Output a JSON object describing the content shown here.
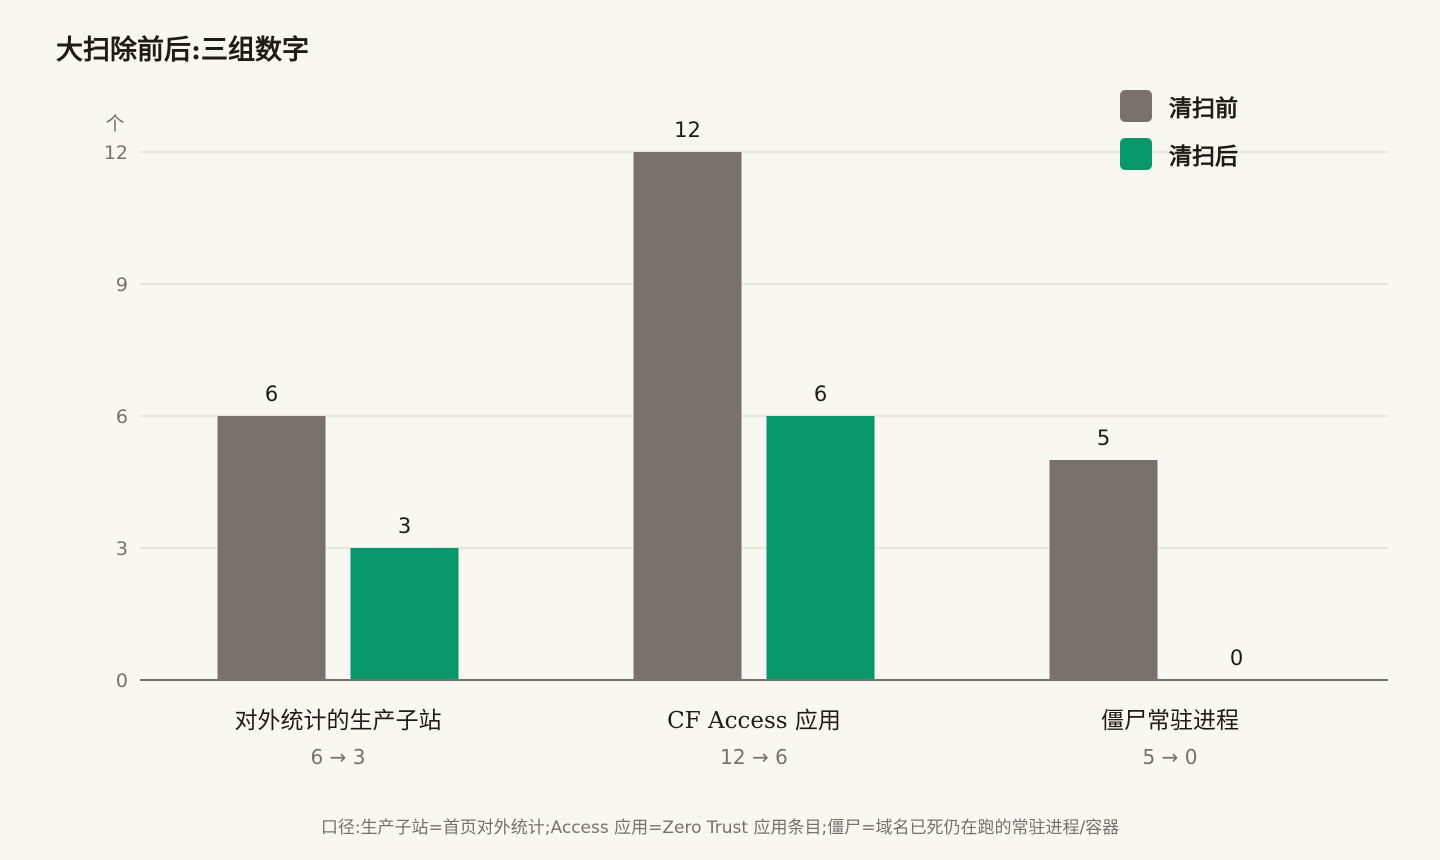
{
  "title": "大扫除前后:三组数字",
  "footnote": "口径:生产子站=首页对外统计;Access 应用=Zero Trust 应用条目;僵尸=域名已死仍在跑的常驻进程/容器",
  "colors": {
    "before": "#79716b",
    "after": "#08966b",
    "grid": "#e6e3d6",
    "axis": "#77716a",
    "tick_text": "#77716a",
    "label_text": "#1f1b18",
    "background": "#f9f7f2"
  },
  "chart_data": {
    "type": "bar",
    "title": "大扫除前后:三组数字",
    "y_unit": "个",
    "ylim": [
      0,
      12
    ],
    "yticks": [
      0,
      3,
      6,
      9,
      12
    ],
    "grid": true,
    "legend_position": "top-right",
    "categories": [
      "对外统计的生产子站",
      "CF Access 应用",
      "僵尸常驻进程"
    ],
    "category_notes": [
      "6 → 3",
      "12 → 6",
      "5 → 0"
    ],
    "series": [
      {
        "name": "清扫前",
        "values": [
          6,
          12,
          5
        ]
      },
      {
        "name": "清扫后",
        "values": [
          3,
          6,
          0
        ]
      }
    ]
  }
}
